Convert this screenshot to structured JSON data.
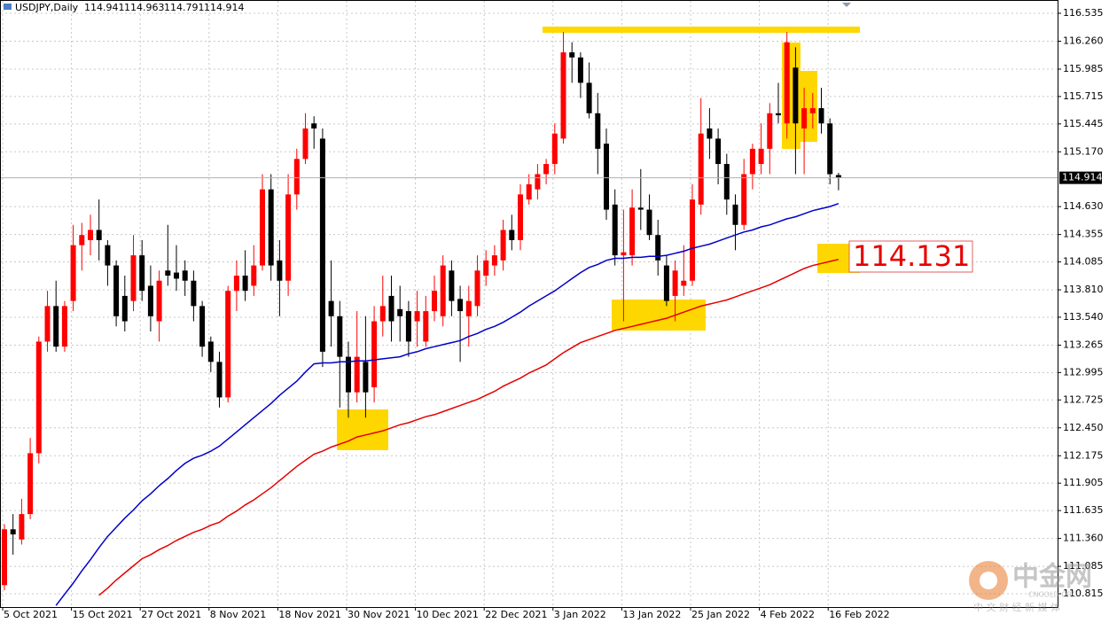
{
  "chart_data": {
    "type": "candlestick",
    "title": "USDJPY,Daily",
    "categories": [
      "5 Oct 2021",
      null,
      null,
      null,
      null,
      null,
      null,
      null,
      "15 Oct 2021",
      null,
      null,
      null,
      null,
      null,
      null,
      null,
      "27 Oct 2021",
      null,
      null,
      null,
      null,
      null,
      null,
      null,
      "8 Nov 2021",
      null,
      null,
      null,
      null,
      null,
      null,
      null,
      "18 Nov 2021",
      null,
      null,
      null,
      null,
      null,
      null,
      null,
      "30 Nov 2021",
      null,
      null,
      null,
      null,
      null,
      null,
      null,
      "10 Dec 2021",
      null,
      null,
      null,
      null,
      null,
      null,
      null,
      "22 Dec 2021",
      null,
      null,
      null,
      null,
      null,
      null,
      null,
      "3 Jan 2022",
      null,
      null,
      null,
      null,
      null,
      null,
      null,
      "13 Jan 2022",
      null,
      null,
      null,
      null,
      null,
      null,
      null,
      "25 Jan 2022",
      null,
      null,
      null,
      null,
      null,
      null,
      null,
      "4 Feb 2022",
      null,
      null,
      null,
      null,
      null,
      null,
      null,
      "16 Feb 2022",
      null
    ],
    "open": [
      110.9,
      111.45,
      111.35,
      111.6,
      112.2,
      113.3,
      113.65,
      113.25,
      113.7,
      114.25,
      114.3,
      114.4,
      114.25,
      114.05,
      113.75,
      113.7,
      114.15,
      113.85,
      113.5,
      114.0,
      113.98,
      114.0,
      113.9,
      113.65,
      113.3,
      113.1,
      112.75,
      113.8,
      113.95,
      113.85,
      114.05,
      114.8,
      114.1,
      113.9,
      114.75,
      115.1,
      115.45,
      115.3,
      113.7,
      113.55,
      113.15,
      112.8,
      113.1,
      112.85,
      113.5,
      113.75,
      113.62,
      113.6,
      113.5,
      113.3,
      113.6,
      113.55,
      114.0,
      113.72,
      113.55,
      113.65,
      113.95,
      114.05,
      114.1,
      114.4,
      114.3,
      114.7,
      114.8,
      114.95,
      115.05,
      115.3,
      116.15,
      116.1,
      115.85,
      115.55,
      115.25,
      114.65,
      114.15,
      114.15,
      114.62,
      114.6,
      114.35,
      114.05,
      113.75,
      113.85,
      113.9,
      114.65,
      115.4,
      115.3,
      115.05,
      114.65,
      114.45,
      114.95,
      115.05,
      115.2,
      115.55,
      115.45,
      116.0,
      115.4,
      115.55,
      115.6,
      115.45,
      114.941
    ],
    "high": [
      111.5,
      111.6,
      111.75,
      112.35,
      113.35,
      113.8,
      113.9,
      113.7,
      114.45,
      114.47,
      114.55,
      114.7,
      114.3,
      114.1,
      113.95,
      114.35,
      114.3,
      114.05,
      114.0,
      114.45,
      114.25,
      114.1,
      114.0,
      113.7,
      113.35,
      113.2,
      113.85,
      114.1,
      114.2,
      114.25,
      114.95,
      114.95,
      114.3,
      114.95,
      115.2,
      115.55,
      115.52,
      115.4,
      114.1,
      113.7,
      113.3,
      113.6,
      113.55,
      113.65,
      113.95,
      113.95,
      113.85,
      113.7,
      113.8,
      113.75,
      113.95,
      114.15,
      114.1,
      113.85,
      113.85,
      114.15,
      114.2,
      114.25,
      114.5,
      114.55,
      114.85,
      114.95,
      115.05,
      115.1,
      115.45,
      116.35,
      116.25,
      116.15,
      116.05,
      115.75,
      115.4,
      114.8,
      114.6,
      114.8,
      115.0,
      114.75,
      114.5,
      114.15,
      114.1,
      114.25,
      114.85,
      115.7,
      115.6,
      115.4,
      115.15,
      114.75,
      115.1,
      115.25,
      115.45,
      115.65,
      115.85,
      116.35,
      116.2,
      115.8,
      115.75,
      115.8,
      115.5,
      114.963
    ],
    "low": [
      110.85,
      111.2,
      111.3,
      111.55,
      112.1,
      113.2,
      113.2,
      113.2,
      113.6,
      114.0,
      114.15,
      114.1,
      113.85,
      113.45,
      113.4,
      113.6,
      113.7,
      113.4,
      113.3,
      113.85,
      113.8,
      113.75,
      113.5,
      113.15,
      113.0,
      112.65,
      112.7,
      113.6,
      113.7,
      113.75,
      114.0,
      113.9,
      113.55,
      113.75,
      114.6,
      115.05,
      115.2,
      113.05,
      113.25,
      112.65,
      112.55,
      112.7,
      112.55,
      112.7,
      113.35,
      113.3,
      113.3,
      113.15,
      113.25,
      113.25,
      113.5,
      113.45,
      113.55,
      113.1,
      113.25,
      113.55,
      113.85,
      113.95,
      114.0,
      114.2,
      114.2,
      114.65,
      114.7,
      114.85,
      114.95,
      115.25,
      115.85,
      115.7,
      115.5,
      114.95,
      114.5,
      114.05,
      113.5,
      114.05,
      114.4,
      114.3,
      113.95,
      113.65,
      113.5,
      113.75,
      113.85,
      114.55,
      115.1,
      114.85,
      114.55,
      114.2,
      114.4,
      114.8,
      114.95,
      114.95,
      115.45,
      115.3,
      114.95,
      114.95,
      115.4,
      115.35,
      114.85,
      114.791
    ],
    "close": [
      111.45,
      111.4,
      111.6,
      112.2,
      113.3,
      113.65,
      113.25,
      113.65,
      114.25,
      114.35,
      114.4,
      114.3,
      114.05,
      113.55,
      113.5,
      114.15,
      113.8,
      113.55,
      113.9,
      113.95,
      113.92,
      113.9,
      113.65,
      113.25,
      113.1,
      112.75,
      113.8,
      113.95,
      113.8,
      114.05,
      114.8,
      114.05,
      113.9,
      114.75,
      115.1,
      115.4,
      115.4,
      113.2,
      113.55,
      113.15,
      112.8,
      113.15,
      112.8,
      113.5,
      113.65,
      113.5,
      113.55,
      113.3,
      113.6,
      113.6,
      113.8,
      114.05,
      113.7,
      113.6,
      113.7,
      114.0,
      114.1,
      114.15,
      114.4,
      114.3,
      114.75,
      114.85,
      114.95,
      115.05,
      115.35,
      116.15,
      116.1,
      115.85,
      115.55,
      115.2,
      114.6,
      114.15,
      114.18,
      114.62,
      114.6,
      114.35,
      114.1,
      113.7,
      114.0,
      113.9,
      114.7,
      115.35,
      115.3,
      115.05,
      114.7,
      114.45,
      114.95,
      115.2,
      115.2,
      115.55,
      115.53,
      116.25,
      115.45,
      115.6,
      115.6,
      115.45,
      114.95,
      114.914
    ],
    "up_color": "#ff0000",
    "down_color": "#000000",
    "lines": [
      {
        "color": "#0000c8",
        "values": [
          null,
          null,
          null,
          null,
          null,
          null,
          110.7,
          110.81,
          110.92,
          111.04,
          111.15,
          111.27,
          111.38,
          111.47,
          111.56,
          111.64,
          111.73,
          111.8,
          111.88,
          111.95,
          112.03,
          112.1,
          112.15,
          112.18,
          112.22,
          112.27,
          112.34,
          112.41,
          112.48,
          112.55,
          112.62,
          112.69,
          112.77,
          112.84,
          112.91,
          113.0,
          113.08,
          113.09,
          113.09,
          113.1,
          113.1,
          113.11,
          113.11,
          113.12,
          113.13,
          113.14,
          113.15,
          113.18,
          113.2,
          113.23,
          113.25,
          113.27,
          113.29,
          113.31,
          113.35,
          113.38,
          113.42,
          113.45,
          113.49,
          113.54,
          113.59,
          113.65,
          113.7,
          113.75,
          113.8,
          113.86,
          113.92,
          113.98,
          114.03,
          114.06,
          114.1,
          114.12,
          114.12,
          114.13,
          114.13,
          114.14,
          114.14,
          114.15,
          114.17,
          114.19,
          114.22,
          114.24,
          114.26,
          114.29,
          114.32,
          114.35,
          114.38,
          114.4,
          114.43,
          114.45,
          114.48,
          114.51,
          114.53,
          114.56,
          114.59,
          114.61,
          114.63,
          114.66
        ]
      },
      {
        "color": "#e60000",
        "values": [
          null,
          null,
          null,
          null,
          null,
          null,
          null,
          null,
          null,
          null,
          null,
          110.8,
          110.87,
          110.95,
          111.02,
          111.09,
          111.16,
          111.2,
          111.25,
          111.29,
          111.34,
          111.38,
          111.42,
          111.45,
          111.49,
          111.52,
          111.58,
          111.63,
          111.69,
          111.74,
          111.8,
          111.86,
          111.93,
          112.0,
          112.07,
          112.13,
          112.19,
          112.22,
          112.26,
          112.29,
          112.32,
          112.36,
          112.38,
          112.4,
          112.42,
          112.45,
          112.48,
          112.5,
          112.53,
          112.56,
          112.58,
          112.61,
          112.64,
          112.67,
          112.7,
          112.73,
          112.77,
          112.81,
          112.86,
          112.9,
          112.94,
          112.99,
          113.03,
          113.07,
          113.13,
          113.19,
          113.24,
          113.29,
          113.32,
          113.35,
          113.38,
          113.41,
          113.43,
          113.45,
          113.47,
          113.49,
          113.51,
          113.53,
          113.56,
          113.59,
          113.62,
          113.65,
          113.67,
          113.69,
          113.71,
          113.74,
          113.77,
          113.8,
          113.83,
          113.86,
          113.9,
          113.94,
          113.98,
          114.02,
          114.05,
          114.07,
          114.09,
          114.11
        ]
      }
    ],
    "ylim": [
      110.684,
      116.666
    ],
    "yticks": [
      116.535,
      {
        "value": 116.26,
        "label": "116.260"
      },
      115.985,
      115.715,
      115.445,
      {
        "value": 115.17,
        "label": "115.170"
      },
      {
        "value": 114.63,
        "label": "114.630"
      },
      114.355,
      114.085,
      {
        "value": 113.81,
        "label": "113.810"
      },
      {
        "value": 113.54,
        "label": "113.540"
      },
      113.265,
      112.995,
      112.725,
      {
        "value": 112.45,
        "label": "112.450"
      },
      112.175,
      111.905,
      111.635,
      {
        "value": 111.36,
        "label": "111.360"
      },
      111.085,
      110.815
    ],
    "grid": true,
    "annotation": "114.131",
    "watermark": {
      "brand": "中金网",
      "site": "CNGOLD.ORG",
      "slogan": "中 文 财 经 新 媒 体"
    }
  }
}
